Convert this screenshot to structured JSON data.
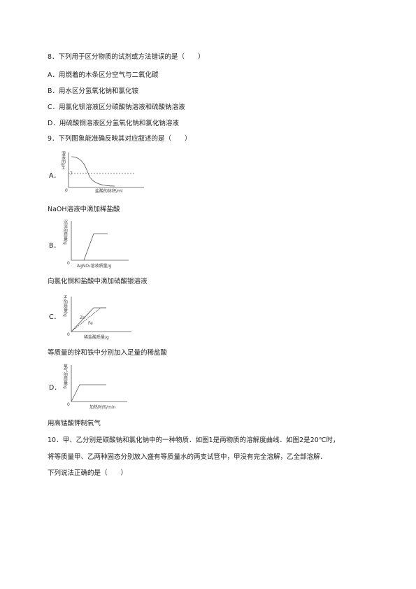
{
  "q8": {
    "stem": "8．下列用于区分物质的试剂或方法错误的是（　　）",
    "options": [
      "A．用燃着的木条区分空气与二氧化碳",
      "B．用水区分氢氧化钠和氯化铵",
      "C．用氯化钡溶液区分碳酸钠溶液和硫酸钠溶液",
      "D．用硫酸铜溶液区分氢氧化钠和氯化钠溶液"
    ]
  },
  "q9": {
    "stem": "9．下列图象能准确反映其对应叙述的是（　　）",
    "options": [
      {
        "label": "A．",
        "y_label": "溶液的pH",
        "y_tick": "7",
        "x_label": "盐酸的体积/ml",
        "origin": "0",
        "caption": "NaOH溶液中滴加稀盐酸"
      },
      {
        "label": "B．",
        "y_label": "沉淀的质量/g",
        "x_label": "AgNO₃溶液质量/g",
        "origin": "0",
        "caption": "向氯化铜和盐酸中滴加硝酸银溶液"
      },
      {
        "label": "C．",
        "y_label": "H₂的质量/g",
        "series_labels": [
          "Zn",
          "Fe"
        ],
        "x_label": "稀盐酸质量/g",
        "origin": "0",
        "caption": "等质量的锌和铁中分别加入足量的稀盐酸"
      },
      {
        "label": "D．",
        "y_label": "氧气的质量/g",
        "x_label": "加热时间/min",
        "origin": "0",
        "caption": "用高锰酸钾制氧气"
      }
    ]
  },
  "q10": {
    "lines": [
      "10．甲、乙分别是碳酸钠和氯化钠中的一种物质．如图1是两物质的溶解度曲线．如图2是20℃时，",
      "将等质量甲、乙两种固态分别放入盛有等质量水的两支试管中，甲没有完全溶解，乙全部溶解．",
      "下列说法正确的是（　　）"
    ]
  }
}
